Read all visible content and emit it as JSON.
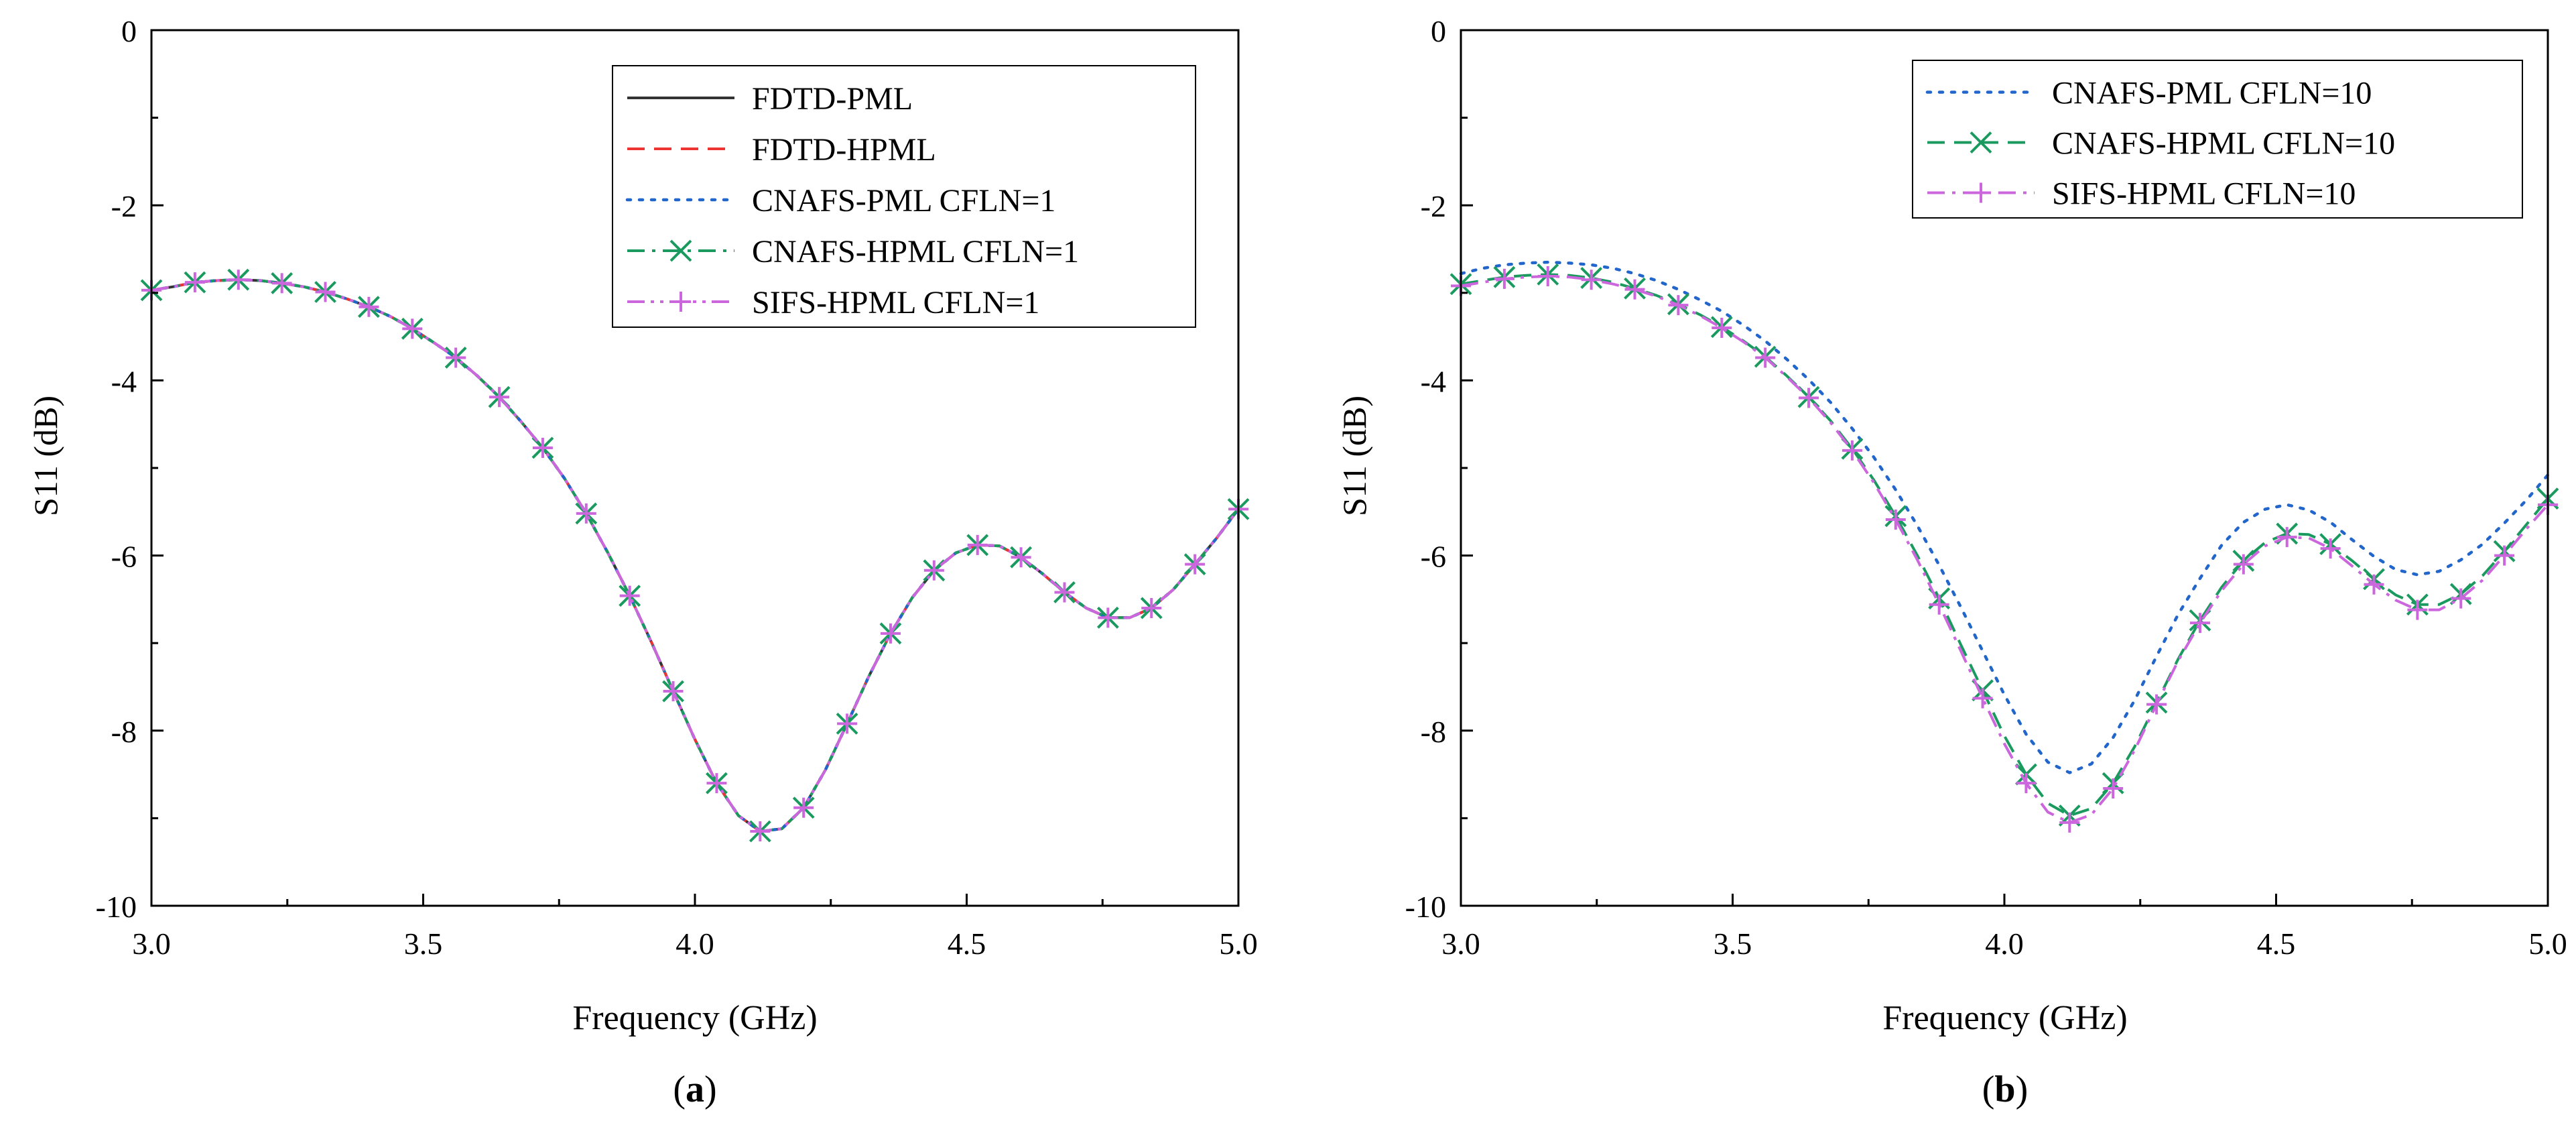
{
  "chart_data": [
    {
      "type": "line",
      "panel_label": "a",
      "title": "",
      "xlabel": "Frequency (GHz)",
      "ylabel": "S11 (dB)",
      "xlim": [
        3.0,
        5.0
      ],
      "ylim": [
        -10,
        0
      ],
      "xticks": [
        3.0,
        3.5,
        4.0,
        4.5,
        5.0
      ],
      "xtick_labels": [
        "3.0",
        "3.5",
        "4.0",
        "4.5",
        "5.0"
      ],
      "yticks": [
        0,
        -2,
        -4,
        -6,
        -8,
        -10
      ],
      "ytick_labels": [
        "0",
        "-2",
        "-4",
        "-6",
        "-8",
        "-10"
      ],
      "legend_position": "top-right",
      "x": [
        3.0,
        3.04,
        3.08,
        3.12,
        3.16,
        3.2,
        3.24,
        3.28,
        3.32,
        3.36,
        3.4,
        3.44,
        3.48,
        3.52,
        3.56,
        3.6,
        3.64,
        3.68,
        3.72,
        3.76,
        3.8,
        3.84,
        3.88,
        3.92,
        3.96,
        4.0,
        4.04,
        4.08,
        4.12,
        4.16,
        4.2,
        4.24,
        4.28,
        4.32,
        4.36,
        4.4,
        4.44,
        4.48,
        4.52,
        4.56,
        4.6,
        4.64,
        4.68,
        4.72,
        4.76,
        4.8,
        4.84,
        4.88,
        4.92,
        4.96,
        5.0
      ],
      "series": [
        {
          "name": "FDTD-PML",
          "color": "#333333",
          "dash": "solid",
          "marker": "none",
          "values": [
            -2.97,
            -2.93,
            -2.88,
            -2.86,
            -2.85,
            -2.86,
            -2.89,
            -2.93,
            -2.99,
            -3.07,
            -3.16,
            -3.27,
            -3.41,
            -3.57,
            -3.74,
            -3.95,
            -4.19,
            -4.47,
            -4.77,
            -5.12,
            -5.52,
            -5.97,
            -6.46,
            -6.99,
            -7.55,
            -8.1,
            -8.6,
            -8.97,
            -9.15,
            -9.12,
            -8.88,
            -8.45,
            -7.92,
            -7.38,
            -6.89,
            -6.48,
            -6.17,
            -5.97,
            -5.88,
            -5.89,
            -6.02,
            -6.21,
            -6.42,
            -6.6,
            -6.71,
            -6.71,
            -6.6,
            -6.39,
            -6.1,
            -5.8,
            -5.47
          ]
        },
        {
          "name": "FDTD-HPML",
          "color": "#ee3333",
          "dash": "dashed",
          "marker": "none",
          "values": [
            -2.97,
            -2.93,
            -2.88,
            -2.86,
            -2.85,
            -2.86,
            -2.89,
            -2.93,
            -2.99,
            -3.07,
            -3.16,
            -3.27,
            -3.41,
            -3.57,
            -3.74,
            -3.95,
            -4.19,
            -4.47,
            -4.77,
            -5.12,
            -5.52,
            -5.97,
            -6.46,
            -6.99,
            -7.55,
            -8.1,
            -8.6,
            -8.97,
            -9.15,
            -9.12,
            -8.88,
            -8.45,
            -7.92,
            -7.38,
            -6.89,
            -6.48,
            -6.17,
            -5.97,
            -5.88,
            -5.89,
            -6.02,
            -6.21,
            -6.42,
            -6.6,
            -6.71,
            -6.71,
            -6.6,
            -6.39,
            -6.1,
            -5.8,
            -5.47
          ]
        },
        {
          "name": "CNAFS-PML CFLN=1",
          "color": "#2266cc",
          "dash": "dotted",
          "marker": "none",
          "values": [
            -2.97,
            -2.93,
            -2.88,
            -2.86,
            -2.85,
            -2.86,
            -2.89,
            -2.93,
            -2.99,
            -3.07,
            -3.16,
            -3.27,
            -3.41,
            -3.57,
            -3.74,
            -3.95,
            -4.19,
            -4.47,
            -4.77,
            -5.12,
            -5.52,
            -5.97,
            -6.46,
            -6.99,
            -7.55,
            -8.1,
            -8.6,
            -8.97,
            -9.15,
            -9.12,
            -8.88,
            -8.45,
            -7.92,
            -7.38,
            -6.89,
            -6.48,
            -6.17,
            -5.97,
            -5.88,
            -5.89,
            -6.02,
            -6.21,
            -6.42,
            -6.6,
            -6.71,
            -6.71,
            -6.6,
            -6.39,
            -6.1,
            -5.8,
            -5.47
          ]
        },
        {
          "name": "CNAFS-HPML CFLN=1",
          "color": "#1a9a5e",
          "dash": "dashdot",
          "marker": "x",
          "values": [
            -2.97,
            -2.93,
            -2.88,
            -2.86,
            -2.85,
            -2.86,
            -2.89,
            -2.93,
            -2.99,
            -3.07,
            -3.16,
            -3.27,
            -3.41,
            -3.57,
            -3.74,
            -3.95,
            -4.19,
            -4.47,
            -4.77,
            -5.12,
            -5.52,
            -5.97,
            -6.46,
            -6.99,
            -7.55,
            -8.1,
            -8.6,
            -8.97,
            -9.15,
            -9.12,
            -8.88,
            -8.45,
            -7.92,
            -7.38,
            -6.89,
            -6.48,
            -6.17,
            -5.97,
            -5.88,
            -5.89,
            -6.02,
            -6.21,
            -6.42,
            -6.6,
            -6.71,
            -6.71,
            -6.6,
            -6.39,
            -6.1,
            -5.8,
            -5.47
          ]
        },
        {
          "name": "SIFS-HPML CFLN=1",
          "color": "#cc66dd",
          "dash": "dashdotdot",
          "marker": "plus",
          "values": [
            -2.97,
            -2.93,
            -2.88,
            -2.86,
            -2.85,
            -2.86,
            -2.89,
            -2.93,
            -2.99,
            -3.07,
            -3.16,
            -3.27,
            -3.41,
            -3.57,
            -3.74,
            -3.95,
            -4.19,
            -4.47,
            -4.77,
            -5.12,
            -5.52,
            -5.97,
            -6.46,
            -6.99,
            -7.55,
            -8.1,
            -8.6,
            -8.97,
            -9.15,
            -9.12,
            -8.88,
            -8.45,
            -7.92,
            -7.38,
            -6.89,
            -6.48,
            -6.17,
            -5.97,
            -5.88,
            -5.89,
            -6.02,
            -6.21,
            -6.42,
            -6.6,
            -6.71,
            -6.71,
            -6.6,
            -6.39,
            -6.1,
            -5.8,
            -5.47
          ]
        }
      ]
    },
    {
      "type": "line",
      "panel_label": "b",
      "title": "",
      "xlabel": "Frequency (GHz)",
      "ylabel": "S11 (dB)",
      "xlim": [
        3.0,
        5.0
      ],
      "ylim": [
        -10,
        0
      ],
      "xticks": [
        3.0,
        3.5,
        4.0,
        4.5,
        5.0
      ],
      "xtick_labels": [
        "3.0",
        "3.5",
        "4.0",
        "4.5",
        "5.0"
      ],
      "yticks": [
        0,
        -2,
        -4,
        -6,
        -8,
        -10
      ],
      "ytick_labels": [
        "0",
        "-2",
        "-4",
        "-6",
        "-8",
        "-10"
      ],
      "legend_position": "top-right",
      "x": [
        3.0,
        3.04,
        3.08,
        3.12,
        3.16,
        3.2,
        3.24,
        3.28,
        3.32,
        3.36,
        3.4,
        3.44,
        3.48,
        3.52,
        3.56,
        3.6,
        3.64,
        3.68,
        3.72,
        3.76,
        3.8,
        3.84,
        3.88,
        3.92,
        3.96,
        4.0,
        4.04,
        4.08,
        4.12,
        4.16,
        4.2,
        4.24,
        4.28,
        4.32,
        4.36,
        4.4,
        4.44,
        4.48,
        4.52,
        4.56,
        4.6,
        4.64,
        4.68,
        4.72,
        4.76,
        4.8,
        4.84,
        4.88,
        4.92,
        4.96,
        5.0
      ],
      "series": [
        {
          "name": "CNAFS-PML CFLN=10",
          "color": "#2266cc",
          "dash": "dotted",
          "marker": "none",
          "values": [
            -2.78,
            -2.72,
            -2.68,
            -2.66,
            -2.65,
            -2.66,
            -2.68,
            -2.72,
            -2.78,
            -2.86,
            -2.96,
            -3.08,
            -3.21,
            -3.37,
            -3.55,
            -3.76,
            -3.99,
            -4.25,
            -4.55,
            -4.88,
            -5.25,
            -5.66,
            -6.11,
            -6.59,
            -7.09,
            -7.59,
            -8.04,
            -8.36,
            -8.48,
            -8.38,
            -8.08,
            -7.65,
            -7.15,
            -6.67,
            -6.26,
            -5.88,
            -5.62,
            -5.47,
            -5.42,
            -5.48,
            -5.62,
            -5.82,
            -6.01,
            -6.16,
            -6.22,
            -6.18,
            -6.05,
            -5.87,
            -5.63,
            -5.37,
            -5.08
          ]
        },
        {
          "name": "CNAFS-HPML CFLN=10",
          "color": "#1a9a5e",
          "dash": "dashed",
          "marker": "x",
          "values": [
            -2.9,
            -2.86,
            -2.82,
            -2.8,
            -2.79,
            -2.8,
            -2.83,
            -2.88,
            -2.95,
            -3.03,
            -3.13,
            -3.25,
            -3.39,
            -3.55,
            -3.73,
            -3.95,
            -4.19,
            -4.46,
            -4.78,
            -5.14,
            -5.55,
            -6.0,
            -6.49,
            -7.02,
            -7.54,
            -8.06,
            -8.5,
            -8.83,
            -8.97,
            -8.89,
            -8.6,
            -8.18,
            -7.68,
            -7.18,
            -6.74,
            -6.36,
            -6.06,
            -5.85,
            -5.75,
            -5.76,
            -5.87,
            -6.06,
            -6.27,
            -6.45,
            -6.56,
            -6.56,
            -6.44,
            -6.23,
            -5.95,
            -5.65,
            -5.35
          ]
        },
        {
          "name": "SIFS-HPML CFLN=10",
          "color": "#cc66dd",
          "dash": "dashdot",
          "marker": "plus",
          "values": [
            -2.92,
            -2.88,
            -2.84,
            -2.82,
            -2.81,
            -2.82,
            -2.85,
            -2.9,
            -2.96,
            -3.04,
            -3.14,
            -3.26,
            -3.4,
            -3.56,
            -3.74,
            -3.96,
            -4.2,
            -4.48,
            -4.8,
            -5.17,
            -5.59,
            -6.05,
            -6.56,
            -7.09,
            -7.63,
            -8.15,
            -8.6,
            -8.93,
            -9.05,
            -8.96,
            -8.66,
            -8.22,
            -7.7,
            -7.2,
            -6.77,
            -6.4,
            -6.1,
            -5.89,
            -5.79,
            -5.8,
            -5.92,
            -6.12,
            -6.33,
            -6.51,
            -6.62,
            -6.62,
            -6.49,
            -6.28,
            -6.0,
            -5.7,
            -5.42
          ]
        }
      ]
    }
  ]
}
